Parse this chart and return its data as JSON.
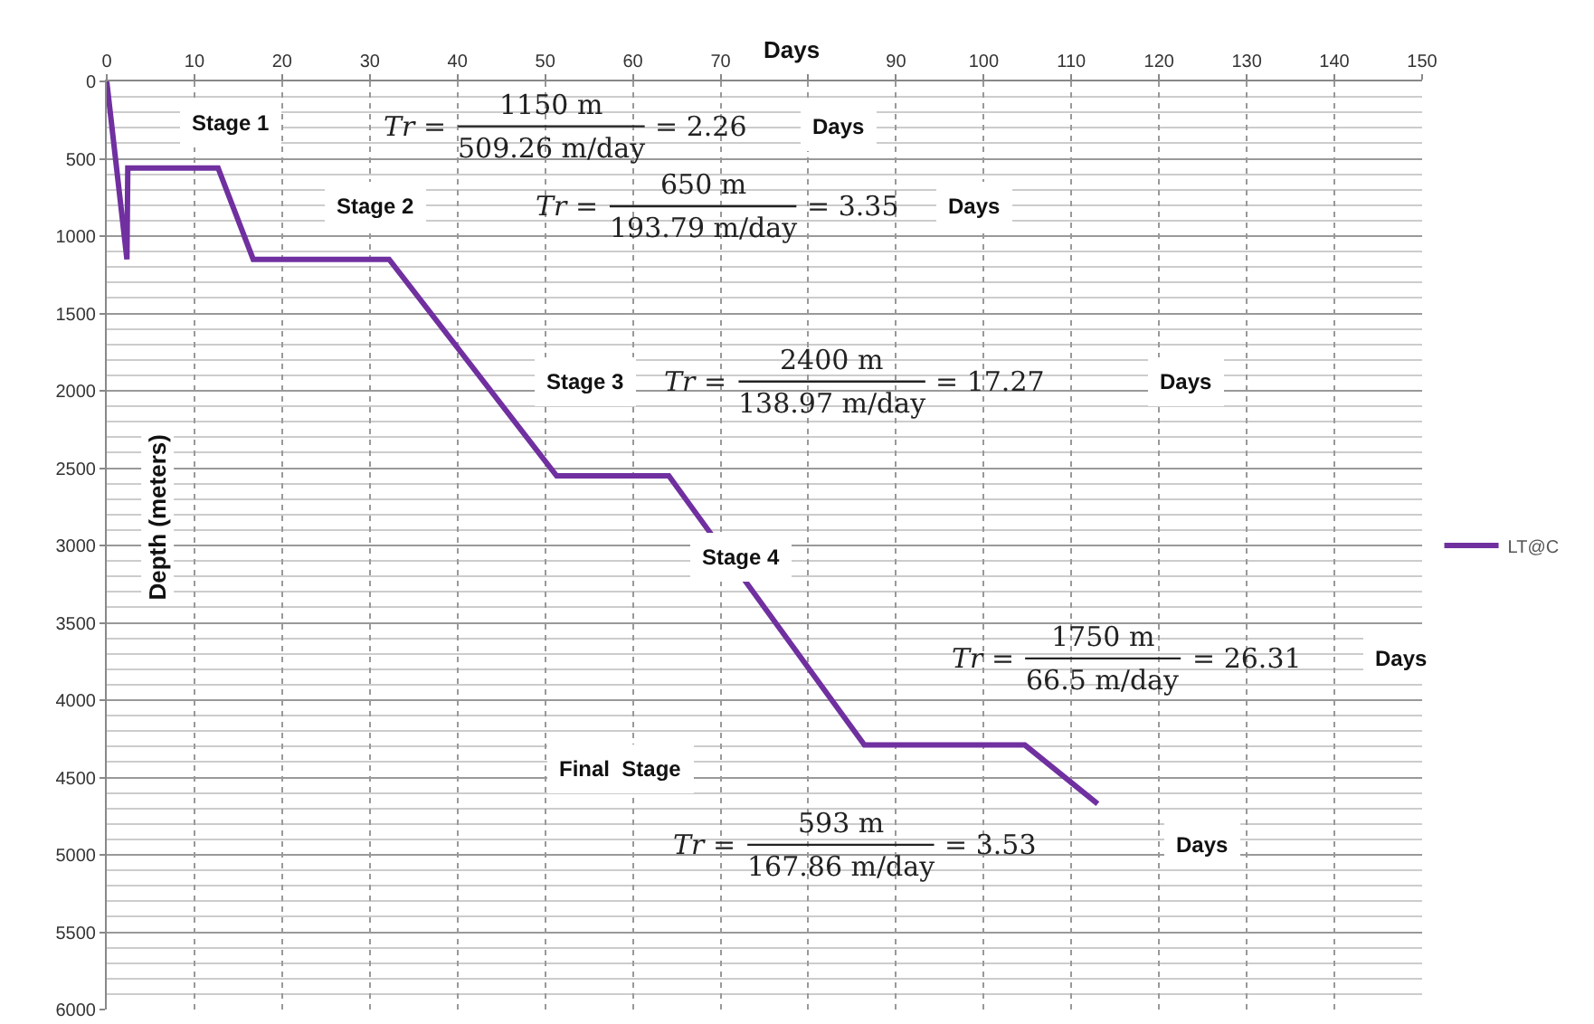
{
  "chart_data": {
    "type": "line",
    "xlabel": "Days",
    "ylabel": "Depth (meters)",
    "x": [
      0,
      2.3,
      2.4,
      12.7,
      16.7,
      32.2,
      51.3,
      64.1,
      86.4,
      104.7,
      113
    ],
    "series": [
      {
        "name": "LT@C",
        "color": "#7030a0",
        "values": [
          0,
          1150,
          560,
          560,
          1150,
          1150,
          2550,
          2550,
          4290,
          4290,
          4670
        ]
      }
    ],
    "xlim": [
      0,
      150
    ],
    "xticks": [
      0,
      10,
      20,
      30,
      40,
      50,
      60,
      70,
      {
        "value": 80,
        "label": null
      },
      90,
      100,
      110,
      120,
      130,
      140,
      150
    ],
    "ylim": [
      6000,
      0
    ],
    "yticks": [
      0,
      500,
      1000,
      1500,
      2000,
      2500,
      3000,
      3500,
      4000,
      4500,
      5000,
      5500,
      6000
    ],
    "grid": true,
    "legend": "right",
    "marker": "none",
    "line_style": "solid",
    "annotations": [
      "Stage 1",
      "Tr =",
      "1150 m",
      "509.26 m/day",
      "= 2.26",
      "Days",
      "Stage 2",
      "Tr =",
      "650 m",
      "193.79 m/day",
      "= 3.35",
      "Days",
      "Stage 3",
      "Tr =",
      "2400 m",
      "138.97 m/day",
      "= 17.27",
      "Days",
      "Stage 4",
      "Tr =",
      "1750 m",
      "66.5 m/day",
      "= 26.31",
      "Days",
      "Final  Stage",
      "Tr =",
      "593 m",
      "167.86 m/day",
      "= 3.53",
      "Days"
    ]
  }
}
